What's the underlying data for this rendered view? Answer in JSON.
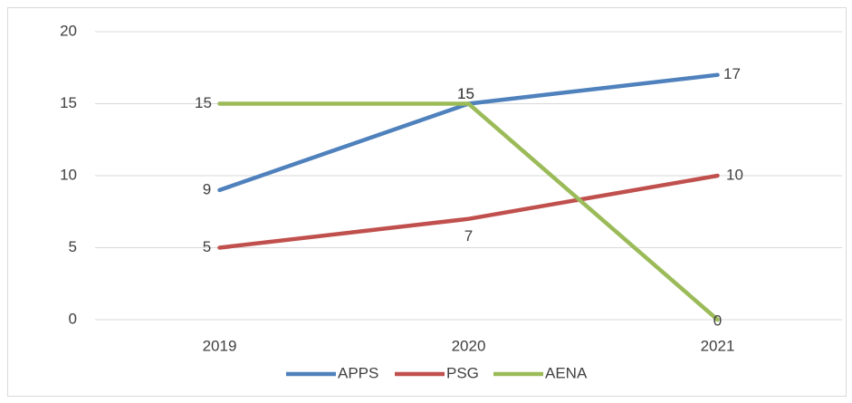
{
  "chart_data": {
    "type": "line",
    "categories": [
      "2019",
      "2020",
      "2021"
    ],
    "series": [
      {
        "name": "APPS",
        "color": "#4f81bd",
        "values": [
          9,
          15,
          17
        ]
      },
      {
        "name": "PSG",
        "color": "#c0504d",
        "values": [
          5,
          7,
          10
        ]
      },
      {
        "name": "AENA",
        "color": "#9bbb59",
        "values": [
          15,
          15,
          0
        ]
      }
    ],
    "ylim": [
      0,
      20
    ],
    "yticks": [
      0,
      5,
      10,
      15,
      20
    ],
    "grid": true,
    "legend": "bottom"
  }
}
